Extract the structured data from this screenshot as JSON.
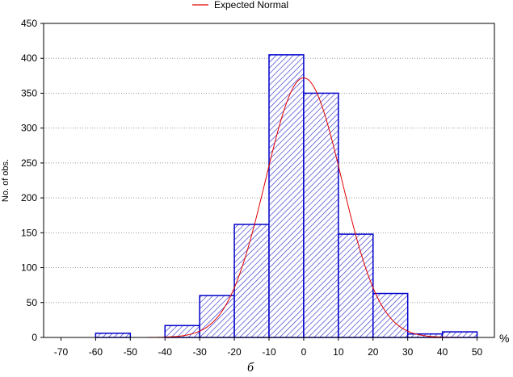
{
  "chart_data": {
    "type": "bar",
    "title": "",
    "xlabel": "",
    "ylabel": "No. of obs.",
    "x_unit": "%",
    "caption": "б",
    "xlim": [
      -75,
      55
    ],
    "ylim": [
      0,
      450
    ],
    "x_ticks": [
      -70,
      -60,
      -50,
      -40,
      -30,
      -20,
      -10,
      0,
      10,
      20,
      30,
      40,
      50
    ],
    "y_ticks": [
      0,
      50,
      100,
      150,
      200,
      250,
      300,
      350,
      400,
      450
    ],
    "grid": true,
    "bins": [
      {
        "from": -60,
        "to": -50,
        "count": 6
      },
      {
        "from": -50,
        "to": -40,
        "count": 0
      },
      {
        "from": -40,
        "to": -30,
        "count": 17
      },
      {
        "from": -30,
        "to": -20,
        "count": 60
      },
      {
        "from": -20,
        "to": -10,
        "count": 162
      },
      {
        "from": -10,
        "to": 0,
        "count": 405
      },
      {
        "from": 0,
        "to": 10,
        "count": 350
      },
      {
        "from": 10,
        "to": 20,
        "count": 148
      },
      {
        "from": 20,
        "to": 30,
        "count": 63
      },
      {
        "from": 30,
        "to": 40,
        "count": 5
      },
      {
        "from": 40,
        "to": 50,
        "count": 8
      }
    ],
    "expected_normal": {
      "name": "Expected Normal",
      "mean": 0,
      "peak": 372,
      "sd": 11,
      "color": "#e00000"
    },
    "legend": {
      "label": "Expected Normal",
      "position": "top"
    },
    "bar_color": "#0000cc"
  }
}
